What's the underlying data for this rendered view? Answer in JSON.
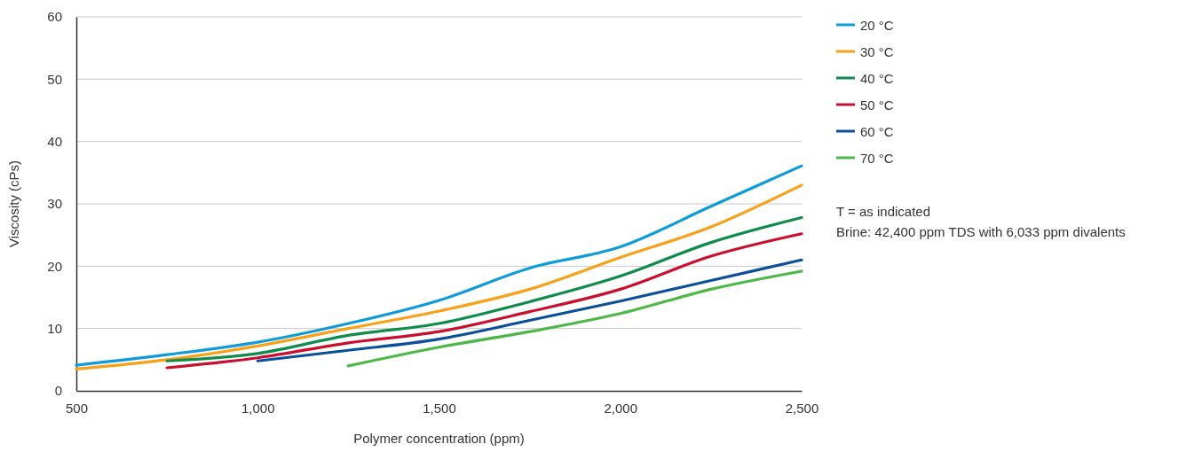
{
  "chart_data": {
    "type": "line",
    "xlabel": "Polymer concentration (ppm)",
    "ylabel": "Viscosity (cPs)",
    "xlim": [
      500,
      2500
    ],
    "xticks": [
      {
        "value": 500,
        "label": "500"
      },
      {
        "value": 1000,
        "label": "1,000"
      },
      {
        "value": 1500,
        "label": "1,500"
      },
      {
        "value": 2000,
        "label": "2,000"
      },
      {
        "value": 2500,
        "label": "2,500"
      }
    ],
    "ylim": [
      0,
      60
    ],
    "yticks": [
      0,
      10,
      20,
      30,
      40,
      50,
      60
    ],
    "grid": "y",
    "legend": "right",
    "marker": "none",
    "line_style": "solid",
    "series": [
      {
        "name": "20 °C",
        "color": "#0f9ad8",
        "x": [
          500,
          750,
          1000,
          1250,
          1500,
          1750,
          2000,
          2250,
          2500
        ],
        "values": [
          4.1,
          5.8,
          7.8,
          10.8,
          14.5,
          19.7,
          23.1,
          29.6,
          36.1
        ]
      },
      {
        "name": "30 °C",
        "color": "#f7a11a",
        "x": [
          500,
          750,
          1000,
          1250,
          1500,
          1750,
          2000,
          2250,
          2500
        ],
        "values": [
          3.5,
          5.0,
          7.2,
          10.0,
          12.8,
          16.3,
          21.4,
          26.3,
          33.0
        ]
      },
      {
        "name": "40 °C",
        "color": "#0f8c4c",
        "x": [
          750,
          1000,
          1250,
          1500,
          1750,
          2000,
          2250,
          2500
        ],
        "values": [
          4.8,
          6.0,
          8.9,
          10.8,
          14.3,
          18.4,
          23.8,
          27.8
        ]
      },
      {
        "name": "50 °C",
        "color": "#c8102e",
        "x": [
          750,
          1000,
          1250,
          1500,
          1750,
          2000,
          2250,
          2500
        ],
        "values": [
          3.7,
          5.3,
          7.7,
          9.5,
          12.7,
          16.3,
          21.6,
          25.2
        ]
      },
      {
        "name": "60 °C",
        "color": "#0b4f9c",
        "x": [
          1000,
          1250,
          1500,
          1750,
          2000,
          2250,
          2500
        ],
        "values": [
          4.8,
          6.5,
          8.3,
          11.3,
          14.4,
          17.7,
          21.0
        ]
      },
      {
        "name": "70 °C",
        "color": "#4cb847",
        "x": [
          1250,
          1500,
          1750,
          2000,
          2250,
          2500
        ],
        "values": [
          4.0,
          7.0,
          9.5,
          12.4,
          16.3,
          19.2
        ]
      }
    ],
    "annotations": [
      "T = as indicated",
      "Brine: 42,400 ppm TDS with 6,033 ppm divalents"
    ]
  }
}
